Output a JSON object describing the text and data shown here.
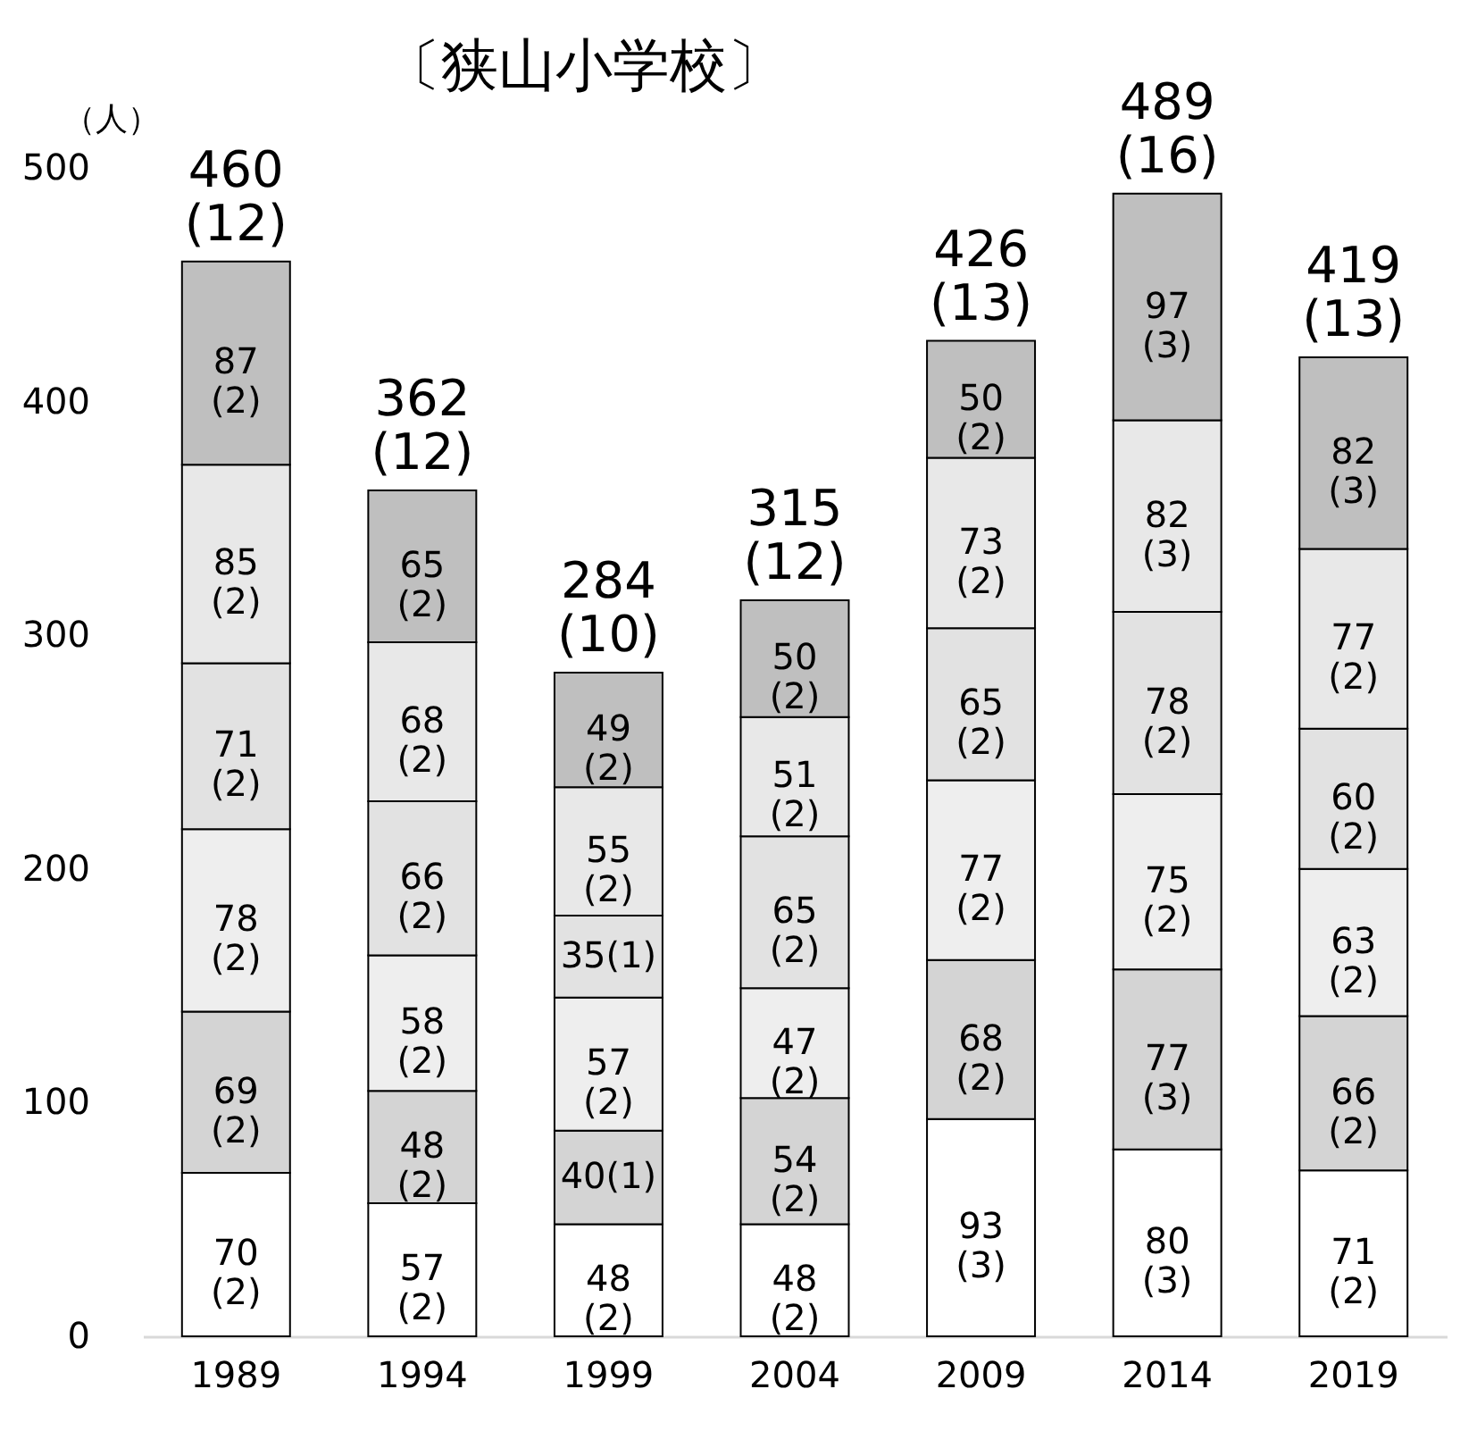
{
  "chart_data": {
    "type": "bar",
    "title": "〔狭山小学校〕",
    "ylabel": "（人）",
    "categories": [
      "1989",
      "1994",
      "1999",
      "2004",
      "2009",
      "2014",
      "2019"
    ],
    "stacked": true,
    "series": [
      {
        "color": "#ffffff",
        "values": [
          70,
          57,
          48,
          48,
          93,
          80,
          71
        ],
        "value_labels": [
          "70\n(2)",
          "57\n(2)",
          "48\n(2)",
          "48\n(2)",
          "93\n(3)",
          "80\n(3)",
          "71\n(2)"
        ]
      },
      {
        "color": "#d4d4d4",
        "values": [
          69,
          48,
          40,
          54,
          68,
          77,
          66
        ],
        "value_labels": [
          "69\n(2)",
          "48\n(2)",
          "40(1)",
          "54\n(2)",
          "68\n(2)",
          "77\n(3)",
          "66\n(2)"
        ]
      },
      {
        "color": "#eeeeee",
        "values": [
          78,
          58,
          57,
          47,
          77,
          75,
          63
        ],
        "value_labels": [
          "78\n(2)",
          "58\n(2)",
          "57\n(2)",
          "47\n(2)",
          "77\n(2)",
          "75\n(2)",
          "63\n(2)"
        ]
      },
      {
        "color": "#e2e2e2",
        "values": [
          71,
          66,
          35,
          65,
          65,
          78,
          60
        ],
        "value_labels": [
          "71\n(2)",
          "66\n(2)",
          "35(1)",
          "65\n(2)",
          "65\n(2)",
          "78\n(2)",
          "60\n(2)"
        ]
      },
      {
        "color": "#e8e8e8",
        "values": [
          85,
          68,
          55,
          51,
          73,
          82,
          77
        ],
        "value_labels": [
          "85\n(2)",
          "68\n(2)",
          "55\n(2)",
          "51\n(2)",
          "73\n(2)",
          "82\n(3)",
          "77\n(2)"
        ]
      },
      {
        "color": "#bfbfbf",
        "values": [
          87,
          65,
          49,
          50,
          50,
          97,
          82
        ],
        "value_labels": [
          "87\n(2)",
          "65\n(2)",
          "49\n(2)",
          "50\n(2)",
          "50\n(2)",
          "97\n(3)",
          "82\n(3)"
        ]
      }
    ],
    "totals": [
      "460\n(12)",
      "362\n(12)",
      "284\n(10)",
      "315\n(12)",
      "426\n(13)",
      "489\n(16)",
      "419\n(13)"
    ],
    "ylim": [
      0,
      500
    ],
    "yticks": [
      0,
      100,
      200,
      300,
      400,
      500
    ],
    "grid": false
  }
}
